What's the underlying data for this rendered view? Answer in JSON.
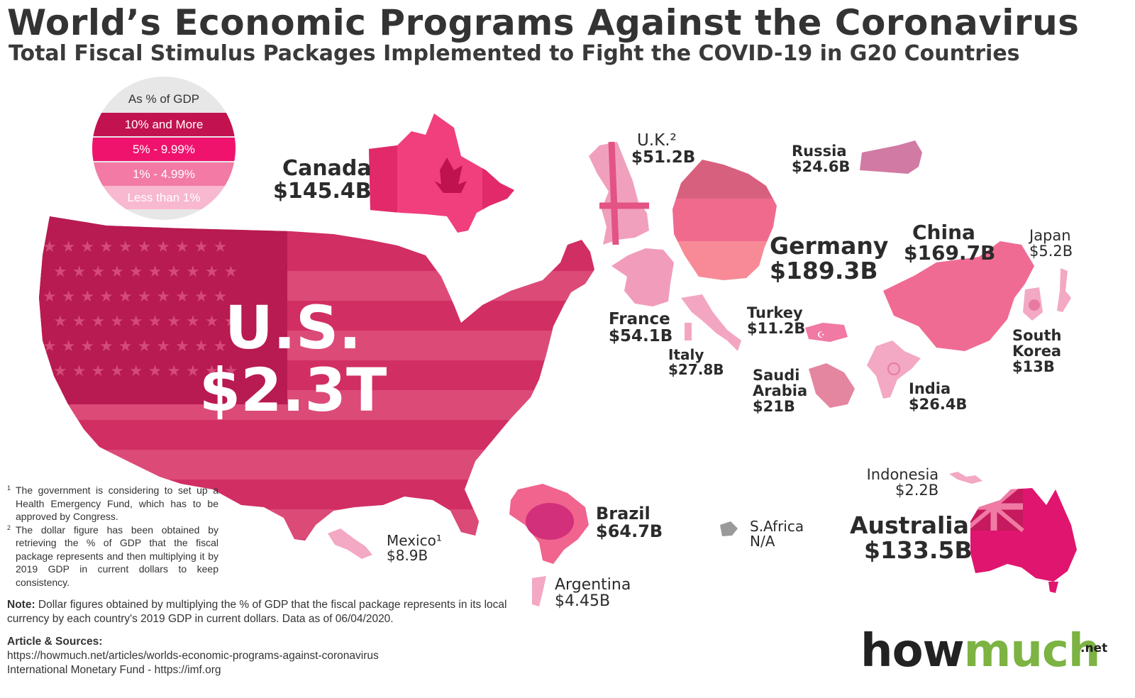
{
  "title": "World’s Economic Programs Against the Coronavirus",
  "subtitle": "Total Fiscal Stimulus Packages Implemented to Fight the COVID-19 in G20 Countries",
  "legend": {
    "title": "As % of GDP",
    "items": [
      {
        "label": "10% and More",
        "color": "#c2124f"
      },
      {
        "label": "5% - 9.99%",
        "color": "#f0136e"
      },
      {
        "label": "1% - 4.99%",
        "color": "#f27aa5"
      },
      {
        "label": "Less than 1%",
        "color": "#f8b8cf"
      }
    ]
  },
  "countries": {
    "us": {
      "name": "U.S.",
      "value": "$2.3T"
    },
    "canada": {
      "name": "Canada",
      "value": "$145.4B"
    },
    "uk": {
      "name": "U.K.²",
      "value": "$51.2B"
    },
    "russia": {
      "name": "Russia",
      "value": "$24.6B"
    },
    "germany": {
      "name": "Germany",
      "value": "$189.3B"
    },
    "china": {
      "name": "China",
      "value": "$169.7B"
    },
    "japan": {
      "name": "Japan",
      "value": "$5.2B"
    },
    "france": {
      "name": "France",
      "value": "$54.1B"
    },
    "turkey": {
      "name": "Turkey",
      "value": "$11.2B"
    },
    "italy": {
      "name": "Italy",
      "value": "$27.8B"
    },
    "saudi": {
      "name": "Saudi Arabia",
      "name_line1": "Saudi",
      "name_line2": "Arabia",
      "value": "$21B"
    },
    "south_korea": {
      "name_line1": "South",
      "name_line2": "Korea",
      "value": "$13B"
    },
    "india": {
      "name": "India",
      "value": "$26.4B"
    },
    "indonesia": {
      "name": "Indonesia",
      "value": "$2.2B"
    },
    "australia": {
      "name": "Australia",
      "value": "$133.5B"
    },
    "brazil": {
      "name": "Brazil",
      "value": "$64.7B"
    },
    "south_africa": {
      "name": "S.Africa",
      "value": "N/A"
    },
    "mexico": {
      "name": "Mexico¹",
      "value": "$8.9B"
    },
    "argentina": {
      "name": "Argentina",
      "value": "$4.45B"
    }
  },
  "footnotes": [
    {
      "mark": "1",
      "text": "The government is considering to set up a Health Emergency Fund, which has to be approved by Congress."
    },
    {
      "mark": "2",
      "text": "The dollar figure has been obtained by retrieving the % of GDP that the fiscal package represents and then multiplying it by 2019 GDP in current dollars to keep consistency."
    }
  ],
  "note": {
    "label": "Note:",
    "text": "Dollar figures obtained by multiplying the % of GDP that the fiscal package represents in its local currency by each country's 2019 GDP in current dollars. Data as of 06/04/2020."
  },
  "sources": {
    "label": "Article & Sources:",
    "lines": [
      "https://howmuch.net/articles/worlds-economic-programs-against-coronavirus",
      "International Monetary Fund - https://imf.org"
    ]
  },
  "logo": {
    "part1": "how",
    "part2": "much",
    "suffix": ".net"
  }
}
